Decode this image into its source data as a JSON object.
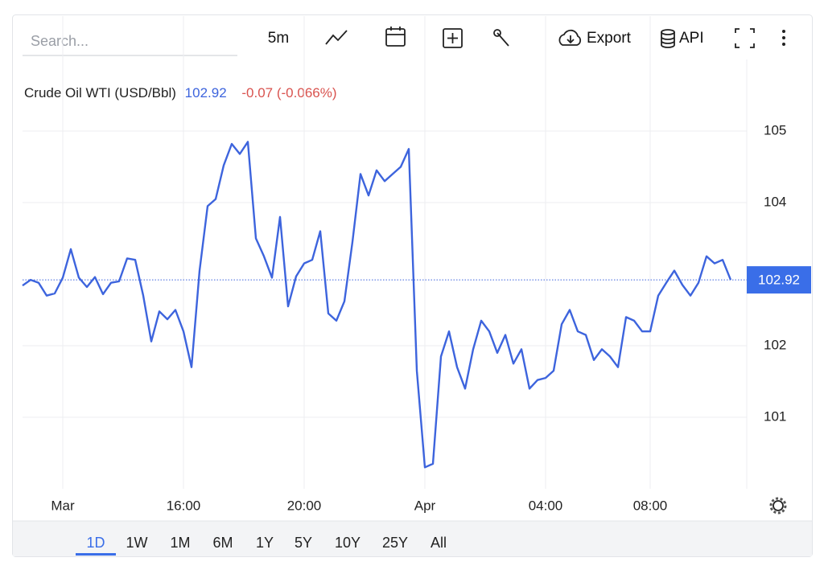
{
  "toolbar": {
    "search_placeholder": "Search...",
    "interval": "5m",
    "export": "Export",
    "api": "API"
  },
  "chart_data": {
    "type": "line",
    "title": "Crude Oil WTI (USD/Bbl)",
    "last_price": 102.92,
    "last_price_label": "102.92",
    "change_label": "-0.07 (-0.066%)",
    "series": [
      {
        "name": "Crude Oil WTI",
        "color": "#3d64dd",
        "values": [
          102.84,
          102.92,
          102.88,
          102.7,
          102.73,
          102.95,
          103.35,
          102.95,
          102.82,
          102.96,
          102.72,
          102.88,
          102.9,
          103.22,
          103.2,
          102.7,
          102.06,
          102.48,
          102.37,
          102.5,
          102.2,
          101.7,
          103.05,
          103.95,
          104.05,
          104.52,
          104.82,
          104.68,
          104.85,
          103.5,
          103.25,
          102.95,
          103.8,
          102.55,
          102.97,
          103.15,
          103.2,
          103.6,
          102.45,
          102.35,
          102.62,
          103.45,
          104.4,
          104.1,
          104.45,
          104.3,
          104.4,
          104.5,
          104.75,
          101.65,
          100.3,
          100.35,
          101.85,
          102.2,
          101.7,
          101.4,
          101.95,
          102.35,
          102.2,
          101.9,
          102.15,
          101.75,
          101.95,
          101.4,
          101.52,
          101.55,
          101.65,
          102.3,
          102.5,
          102.2,
          102.15,
          101.8,
          101.95,
          101.85,
          101.7,
          102.4,
          102.35,
          102.2,
          102.2,
          102.7,
          102.88,
          103.05,
          102.85,
          102.7,
          102.88,
          103.25,
          103.15,
          103.2,
          102.92
        ]
      }
    ],
    "xlim": [
      0,
      90
    ],
    "xticks": [
      {
        "value": 5,
        "label": "Mar"
      },
      {
        "value": 20,
        "label": "16:00"
      },
      {
        "value": 35,
        "label": "20:00"
      },
      {
        "value": 50,
        "label": "Apr"
      },
      {
        "value": 65,
        "label": "04:00"
      },
      {
        "value": 78,
        "label": "08:00"
      }
    ],
    "ylim": [
      100,
      106
    ],
    "yticks": [
      101,
      102,
      104,
      105
    ],
    "grid": true
  },
  "ranges": {
    "items": [
      "1D",
      "1W",
      "1M",
      "6M",
      "1Y",
      "5Y",
      "10Y",
      "25Y",
      "All"
    ],
    "active": 0
  }
}
